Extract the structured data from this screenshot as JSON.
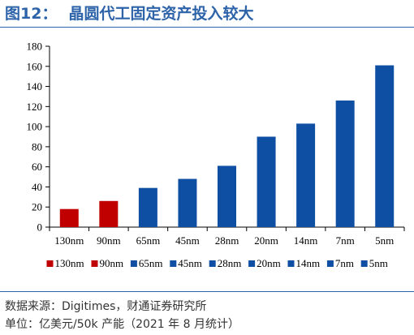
{
  "figure": {
    "number": "图12：",
    "title": "晶圆代工固定资产投入较大",
    "source": "数据来源：Digitimes，财通证券研究所",
    "unit": "单位：亿美元/50k 产能（2021 年 8 月统计）"
  },
  "colors": {
    "title": "#2d63a8",
    "red": "#c00000",
    "blue": "#0f4fa3"
  },
  "chart_data": {
    "type": "bar",
    "categories": [
      "130nm",
      "90nm",
      "65nm",
      "45nm",
      "28nm",
      "20nm",
      "14nm",
      "7nm",
      "5nm"
    ],
    "values": [
      18,
      26,
      39,
      48,
      61,
      90,
      103,
      126,
      161
    ],
    "bar_colors": [
      "#c00000",
      "#c00000",
      "#0f4fa3",
      "#0f4fa3",
      "#0f4fa3",
      "#0f4fa3",
      "#0f4fa3",
      "#0f4fa3",
      "#0f4fa3"
    ],
    "ylim": [
      0,
      180
    ],
    "yticks": [
      0,
      20,
      40,
      60,
      80,
      100,
      120,
      140,
      160,
      180
    ],
    "grid": false,
    "legend": {
      "position": "bottom",
      "entries": [
        "130nm",
        "90nm",
        "65nm",
        "45nm",
        "28nm",
        "20nm",
        "14nm",
        "7nm",
        "5nm"
      ]
    },
    "title": "",
    "xlabel": "",
    "ylabel": ""
  }
}
